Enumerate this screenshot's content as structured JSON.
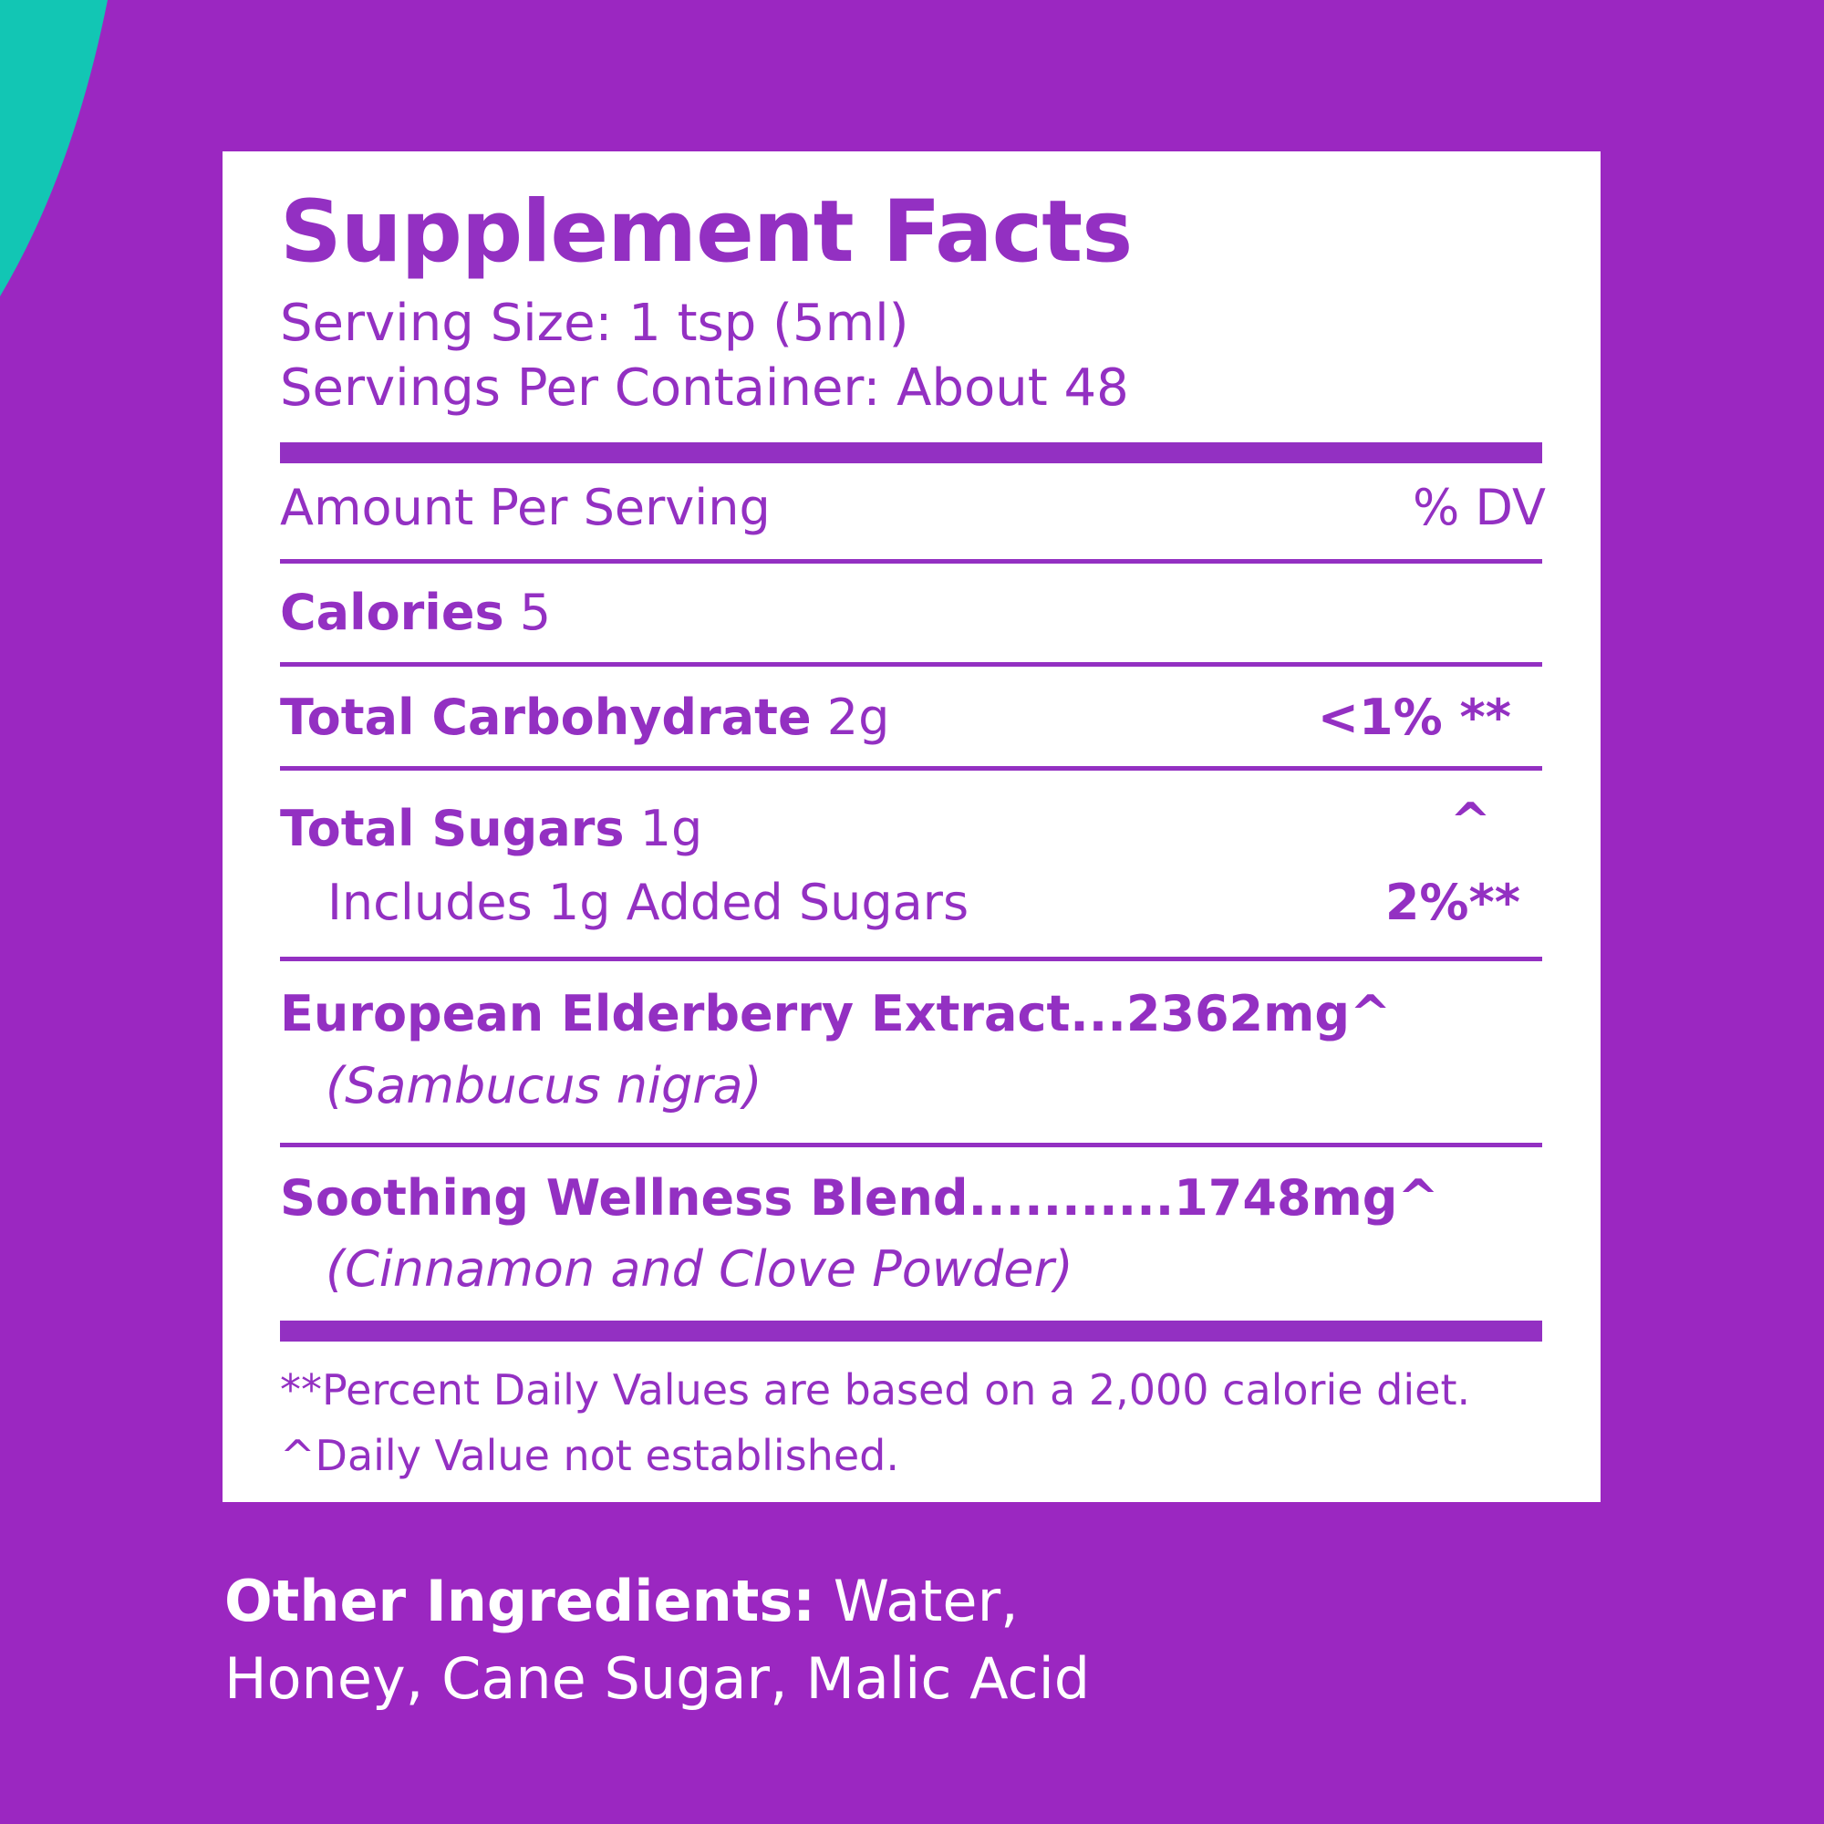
{
  "colors": {
    "background": "#9b27c1",
    "accent_shape": "#12c6b4",
    "panel": "#ffffff",
    "text": "#9330c2"
  },
  "facts": {
    "title": "Supplement Facts",
    "serving_size": "Serving Size: 1 tsp (5ml)",
    "servings_per_container": "Servings Per Container: About 48",
    "amount_header": "Amount Per Serving",
    "dv_header": "% DV",
    "rows": [
      {
        "name": "Calories",
        "amount": "5",
        "dv": ""
      },
      {
        "name": "Total Carbohydrate",
        "amount": "2g",
        "dv": "<1% **"
      },
      {
        "name": "Total Sugars",
        "amount": "1g",
        "dv": "^"
      },
      {
        "name": "Includes 1g Added Sugars",
        "amount": "",
        "dv": "2%**"
      },
      {
        "name": "European Elderberry Extract...2362mg^",
        "sub": "(Sambucus nigra)"
      },
      {
        "name": "Soothing Wellness Blend...........1748mg^",
        "sub": "(Cinnamon and Clove Powder)"
      }
    ],
    "footnotes": [
      "**Percent Daily Values are based on a 2,000 calorie diet.",
      "^Daily Value not established."
    ]
  },
  "other_ingredients": {
    "label": "Other Ingredients:",
    "line1": " Water,",
    "line2": "Honey, Cane Sugar, Malic Acid"
  }
}
